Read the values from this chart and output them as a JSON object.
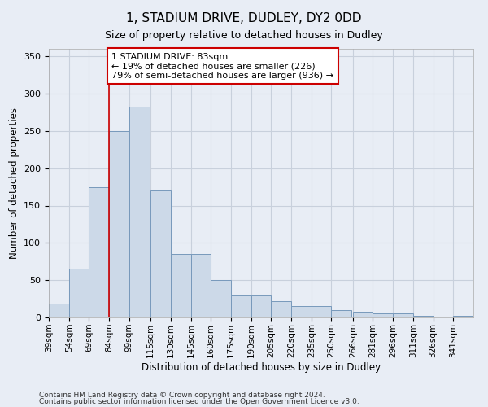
{
  "title": "1, STADIUM DRIVE, DUDLEY, DY2 0DD",
  "subtitle": "Size of property relative to detached houses in Dudley",
  "xlabel": "Distribution of detached houses by size in Dudley",
  "ylabel": "Number of detached properties",
  "categories": [
    "39sqm",
    "54sqm",
    "69sqm",
    "84sqm",
    "99sqm",
    "115sqm",
    "130sqm",
    "145sqm",
    "160sqm",
    "175sqm",
    "190sqm",
    "205sqm",
    "220sqm",
    "235sqm",
    "250sqm",
    "266sqm",
    "281sqm",
    "296sqm",
    "311sqm",
    "326sqm",
    "341sqm"
  ],
  "values": [
    19,
    65,
    175,
    250,
    283,
    170,
    85,
    85,
    50,
    30,
    30,
    22,
    15,
    15,
    10,
    8,
    6,
    5,
    2,
    1,
    2
  ],
  "bar_color": "#ccd9e8",
  "bar_edge_color": "#7799bb",
  "vline_color": "#cc0000",
  "annotation_line1": "1 STADIUM DRIVE: 83sqm",
  "annotation_line2": "← 19% of detached houses are smaller (226)",
  "annotation_line3": "79% of semi-detached houses are larger (936) →",
  "annotation_box_color": "white",
  "annotation_box_edge": "#cc0000",
  "ylim": [
    0,
    360
  ],
  "yticks": [
    0,
    50,
    100,
    150,
    200,
    250,
    300,
    350
  ],
  "grid_color": "#c8d0dc",
  "bg_color": "#e8edf5",
  "title_fontsize": 11,
  "subtitle_fontsize": 9,
  "footer1": "Contains HM Land Registry data © Crown copyright and database right 2024.",
  "footer2": "Contains public sector information licensed under the Open Government Licence v3.0."
}
